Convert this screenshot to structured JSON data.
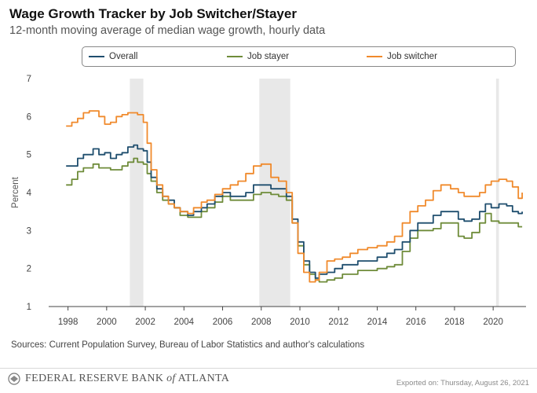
{
  "header": {
    "title": "Wage Growth Tracker by Job Switcher/Stayer",
    "subtitle": "12-month moving average of median wage growth, hourly data"
  },
  "footer": {
    "source": "Sources: Current Population Survey, Bureau of Labor Statistics and author's calculations",
    "logo_main": "FEDERAL RESERVE BANK",
    "logo_of": "of",
    "logo_place": "ATLANTA",
    "exported": "Exported on: Thursday, August 26, 2021"
  },
  "colors": {
    "overall": "#1f4e6e",
    "stayer": "#6f8c3a",
    "switcher": "#f08a2c",
    "recession": "#e8e8e8"
  },
  "chart_data": {
    "type": "line",
    "ylabel": "Percent",
    "xlim": [
      1997.0,
      2021.7
    ],
    "ylim": [
      1,
      7
    ],
    "yticks": [
      1,
      2,
      3,
      4,
      5,
      6,
      7
    ],
    "xticks": [
      "1998",
      "2000",
      "2002",
      "2004",
      "2006",
      "2008",
      "2010",
      "2012",
      "2014",
      "2016",
      "2018",
      "2020"
    ],
    "grid": false,
    "legend": "top",
    "recessions": [
      [
        2001.2,
        2001.9
      ],
      [
        2007.9,
        2009.5
      ],
      [
        2020.15,
        2020.3
      ]
    ],
    "series": [
      {
        "name": "Overall",
        "points": [
          [
            1997.9,
            4.7
          ],
          [
            1998.2,
            4.7
          ],
          [
            1998.5,
            4.9
          ],
          [
            1998.8,
            5.0
          ],
          [
            1999.1,
            5.0
          ],
          [
            1999.3,
            5.15
          ],
          [
            1999.6,
            5.0
          ],
          [
            1999.9,
            5.05
          ],
          [
            2000.2,
            4.9
          ],
          [
            2000.5,
            5.0
          ],
          [
            2000.8,
            5.05
          ],
          [
            2001.1,
            5.2
          ],
          [
            2001.4,
            5.25
          ],
          [
            2001.6,
            5.15
          ],
          [
            2001.9,
            5.1
          ],
          [
            2002.1,
            4.8
          ],
          [
            2002.3,
            4.4
          ],
          [
            2002.6,
            4.1
          ],
          [
            2002.9,
            3.9
          ],
          [
            2003.2,
            3.8
          ],
          [
            2003.5,
            3.6
          ],
          [
            2003.8,
            3.5
          ],
          [
            2004.2,
            3.4
          ],
          [
            2004.5,
            3.5
          ],
          [
            2004.9,
            3.6
          ],
          [
            2005.2,
            3.7
          ],
          [
            2005.6,
            3.9
          ],
          [
            2006.0,
            4.0
          ],
          [
            2006.4,
            3.9
          ],
          [
            2006.8,
            3.9
          ],
          [
            2007.2,
            4.0
          ],
          [
            2007.6,
            4.2
          ],
          [
            2008.0,
            4.2
          ],
          [
            2008.5,
            4.1
          ],
          [
            2008.9,
            4.1
          ],
          [
            2009.3,
            3.9
          ],
          [
            2009.6,
            3.3
          ],
          [
            2009.9,
            2.7
          ],
          [
            2010.2,
            2.2
          ],
          [
            2010.5,
            1.9
          ],
          [
            2010.8,
            1.75
          ],
          [
            2011.0,
            1.85
          ],
          [
            2011.4,
            1.9
          ],
          [
            2011.8,
            2.0
          ],
          [
            2012.2,
            2.1
          ],
          [
            2012.6,
            2.1
          ],
          [
            2013.0,
            2.2
          ],
          [
            2013.5,
            2.2
          ],
          [
            2014.0,
            2.3
          ],
          [
            2014.5,
            2.4
          ],
          [
            2014.9,
            2.5
          ],
          [
            2015.3,
            2.7
          ],
          [
            2015.7,
            3.0
          ],
          [
            2016.1,
            3.2
          ],
          [
            2016.5,
            3.2
          ],
          [
            2016.9,
            3.4
          ],
          [
            2017.3,
            3.5
          ],
          [
            2017.8,
            3.5
          ],
          [
            2018.2,
            3.3
          ],
          [
            2018.5,
            3.25
          ],
          [
            2018.9,
            3.3
          ],
          [
            2019.3,
            3.5
          ],
          [
            2019.6,
            3.7
          ],
          [
            2019.9,
            3.6
          ],
          [
            2020.3,
            3.7
          ],
          [
            2020.7,
            3.65
          ],
          [
            2021.0,
            3.5
          ],
          [
            2021.3,
            3.45
          ],
          [
            2021.5,
            3.5
          ]
        ]
      },
      {
        "name": "Job stayer",
        "points": [
          [
            1997.9,
            4.2
          ],
          [
            1998.2,
            4.35
          ],
          [
            1998.5,
            4.55
          ],
          [
            1998.8,
            4.65
          ],
          [
            1999.1,
            4.65
          ],
          [
            1999.3,
            4.75
          ],
          [
            1999.6,
            4.65
          ],
          [
            1999.9,
            4.65
          ],
          [
            2000.2,
            4.6
          ],
          [
            2000.5,
            4.6
          ],
          [
            2000.8,
            4.7
          ],
          [
            2001.1,
            4.8
          ],
          [
            2001.4,
            4.9
          ],
          [
            2001.6,
            4.8
          ],
          [
            2001.9,
            4.75
          ],
          [
            2002.1,
            4.5
          ],
          [
            2002.3,
            4.3
          ],
          [
            2002.6,
            4.0
          ],
          [
            2002.9,
            3.8
          ],
          [
            2003.2,
            3.7
          ],
          [
            2003.5,
            3.6
          ],
          [
            2003.8,
            3.4
          ],
          [
            2004.2,
            3.35
          ],
          [
            2004.5,
            3.35
          ],
          [
            2004.9,
            3.5
          ],
          [
            2005.2,
            3.6
          ],
          [
            2005.6,
            3.75
          ],
          [
            2006.0,
            3.9
          ],
          [
            2006.4,
            3.8
          ],
          [
            2006.8,
            3.8
          ],
          [
            2007.2,
            3.8
          ],
          [
            2007.6,
            3.95
          ],
          [
            2008.0,
            4.0
          ],
          [
            2008.5,
            3.95
          ],
          [
            2008.9,
            3.9
          ],
          [
            2009.3,
            3.8
          ],
          [
            2009.6,
            3.2
          ],
          [
            2009.9,
            2.6
          ],
          [
            2010.2,
            2.1
          ],
          [
            2010.5,
            1.85
          ],
          [
            2010.8,
            1.7
          ],
          [
            2011.0,
            1.65
          ],
          [
            2011.4,
            1.7
          ],
          [
            2011.8,
            1.75
          ],
          [
            2012.2,
            1.85
          ],
          [
            2012.6,
            1.85
          ],
          [
            2013.0,
            1.95
          ],
          [
            2013.5,
            1.95
          ],
          [
            2014.0,
            2.0
          ],
          [
            2014.5,
            2.05
          ],
          [
            2014.9,
            2.1
          ],
          [
            2015.3,
            2.45
          ],
          [
            2015.7,
            2.8
          ],
          [
            2016.1,
            3.0
          ],
          [
            2016.5,
            3.0
          ],
          [
            2016.9,
            3.05
          ],
          [
            2017.3,
            3.2
          ],
          [
            2017.8,
            3.2
          ],
          [
            2018.2,
            2.85
          ],
          [
            2018.5,
            2.8
          ],
          [
            2018.9,
            2.95
          ],
          [
            2019.3,
            3.2
          ],
          [
            2019.6,
            3.45
          ],
          [
            2019.9,
            3.25
          ],
          [
            2020.3,
            3.2
          ],
          [
            2020.7,
            3.2
          ],
          [
            2021.0,
            3.2
          ],
          [
            2021.3,
            3.1
          ],
          [
            2021.5,
            3.1
          ]
        ]
      },
      {
        "name": "Job switcher",
        "points": [
          [
            1997.9,
            5.75
          ],
          [
            1998.2,
            5.85
          ],
          [
            1998.5,
            5.95
          ],
          [
            1998.8,
            6.1
          ],
          [
            1999.1,
            6.15
          ],
          [
            1999.3,
            6.15
          ],
          [
            1999.6,
            6.0
          ],
          [
            1999.9,
            5.8
          ],
          [
            2000.2,
            5.85
          ],
          [
            2000.5,
            6.0
          ],
          [
            2000.8,
            6.05
          ],
          [
            2001.1,
            6.1
          ],
          [
            2001.4,
            6.1
          ],
          [
            2001.6,
            6.05
          ],
          [
            2001.9,
            5.85
          ],
          [
            2002.1,
            5.3
          ],
          [
            2002.3,
            4.6
          ],
          [
            2002.6,
            4.2
          ],
          [
            2002.9,
            3.9
          ],
          [
            2003.2,
            3.7
          ],
          [
            2003.5,
            3.6
          ],
          [
            2003.8,
            3.5
          ],
          [
            2004.2,
            3.45
          ],
          [
            2004.5,
            3.6
          ],
          [
            2004.9,
            3.75
          ],
          [
            2005.2,
            3.8
          ],
          [
            2005.6,
            3.95
          ],
          [
            2006.0,
            4.1
          ],
          [
            2006.4,
            4.2
          ],
          [
            2006.8,
            4.3
          ],
          [
            2007.2,
            4.5
          ],
          [
            2007.6,
            4.7
          ],
          [
            2008.0,
            4.75
          ],
          [
            2008.5,
            4.4
          ],
          [
            2008.9,
            4.3
          ],
          [
            2009.3,
            4.0
          ],
          [
            2009.6,
            3.2
          ],
          [
            2009.9,
            2.4
          ],
          [
            2010.2,
            1.9
          ],
          [
            2010.5,
            1.65
          ],
          [
            2010.8,
            1.7
          ],
          [
            2011.0,
            1.9
          ],
          [
            2011.4,
            2.2
          ],
          [
            2011.8,
            2.25
          ],
          [
            2012.2,
            2.3
          ],
          [
            2012.6,
            2.4
          ],
          [
            2013.0,
            2.5
          ],
          [
            2013.5,
            2.55
          ],
          [
            2014.0,
            2.6
          ],
          [
            2014.5,
            2.7
          ],
          [
            2014.9,
            2.85
          ],
          [
            2015.3,
            3.2
          ],
          [
            2015.7,
            3.5
          ],
          [
            2016.1,
            3.65
          ],
          [
            2016.5,
            3.8
          ],
          [
            2016.9,
            4.05
          ],
          [
            2017.3,
            4.2
          ],
          [
            2017.8,
            4.1
          ],
          [
            2018.2,
            4.0
          ],
          [
            2018.5,
            3.9
          ],
          [
            2018.9,
            3.9
          ],
          [
            2019.3,
            4.0
          ],
          [
            2019.6,
            4.2
          ],
          [
            2019.9,
            4.3
          ],
          [
            2020.3,
            4.35
          ],
          [
            2020.7,
            4.3
          ],
          [
            2021.0,
            4.15
          ],
          [
            2021.3,
            3.85
          ],
          [
            2021.5,
            4.0
          ]
        ]
      }
    ]
  }
}
